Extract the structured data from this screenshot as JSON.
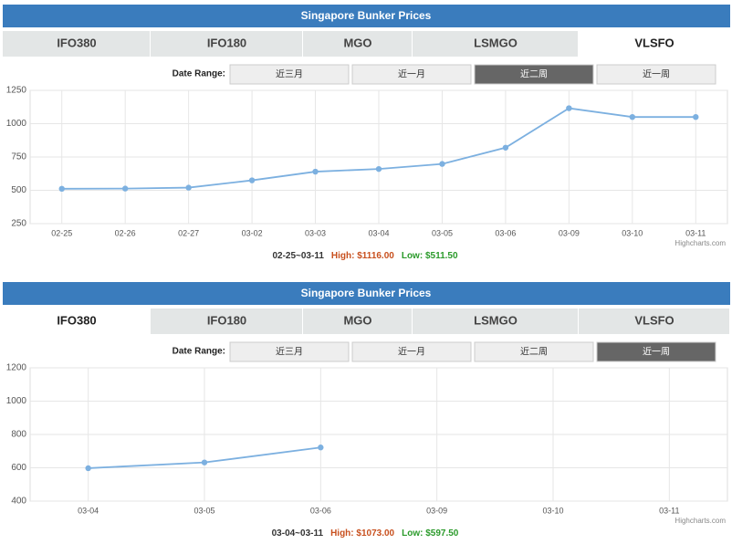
{
  "panels": [
    {
      "title": "Singapore Bunker Prices",
      "tabs": [
        "IFO380",
        "IFO180",
        "MGO",
        "LSMGO",
        "VLSFO"
      ],
      "active_tab": 4,
      "date_range_label": "Date Range:",
      "ranges": [
        "近三月",
        "近一月",
        "近二周",
        "近一周"
      ],
      "active_range": 2,
      "summary": {
        "range": "02-25~03-11",
        "high": "High: $1116.00",
        "low": "Low: $511.50"
      },
      "credit": "Highcharts.com"
    },
    {
      "title": "Singapore Bunker Prices",
      "tabs": [
        "IFO380",
        "IFO180",
        "MGO",
        "LSMGO",
        "VLSFO"
      ],
      "active_tab": 0,
      "date_range_label": "Date Range:",
      "ranges": [
        "近三月",
        "近一月",
        "近二周",
        "近一周"
      ],
      "active_range": 3,
      "summary": {
        "range": "03-04~03-11",
        "high": "High: $1073.00",
        "low": "Low: $597.50"
      },
      "credit": "Highcharts.com"
    }
  ],
  "chart_data": [
    {
      "type": "line",
      "color": "#7cb0e0",
      "grid": true,
      "categories": [
        "02-25",
        "02-26",
        "02-27",
        "03-02",
        "03-03",
        "03-04",
        "03-05",
        "03-06",
        "03-09",
        "03-10",
        "03-11"
      ],
      "values": [
        511.5,
        513,
        520,
        575,
        640,
        660,
        698,
        820,
        1116,
        1050,
        1050
      ],
      "ylim": [
        250,
        1250
      ],
      "yticks": [
        250,
        500,
        750,
        1000,
        1250
      ]
    },
    {
      "type": "line",
      "color": "#7cb0e0",
      "grid": true,
      "categories": [
        "03-04",
        "03-05",
        "03-06",
        "03-09",
        "03-10",
        "03-11"
      ],
      "values": [
        597.5,
        632,
        722,
        null,
        null,
        null
      ],
      "ylim": [
        400,
        1200
      ],
      "yticks": [
        400,
        600,
        800,
        1000,
        1200
      ]
    }
  ]
}
